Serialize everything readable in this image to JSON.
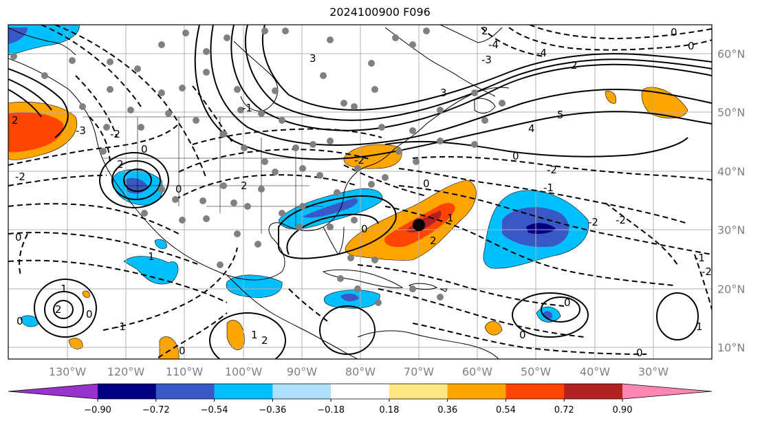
{
  "title": "2024100900 F096",
  "map": {
    "lon_labels": [
      "130°W",
      "120°W",
      "110°W",
      "100°W",
      "90°W",
      "80°W",
      "70°W",
      "60°W",
      "50°W",
      "40°W",
      "30°W"
    ],
    "lat_labels": [
      "60°N",
      "50°N",
      "40°N",
      "30°N",
      "20°N",
      "10°N"
    ],
    "grid_lines": true,
    "contour_labels": [
      "5",
      "4",
      "3",
      "2",
      "-1",
      "-2",
      "-3",
      "-4",
      "-5",
      "1",
      "2",
      "0"
    ],
    "center_marker": {
      "lon": -70,
      "lat": 31
    }
  },
  "colorbar": {
    "tick_labels": [
      "−0.90",
      "−0.72",
      "−0.54",
      "−0.36",
      "−0.18",
      "0.18",
      "0.36",
      "0.54",
      "0.72",
      "0.90"
    ],
    "colors": [
      "#9a32cd",
      "#000080",
      "#3a57c6",
      "#00bfff",
      "#aee0fb",
      "#ffffff",
      "#ffe680",
      "#ffa500",
      "#ff4500",
      "#b22222",
      "#ff85b3"
    ],
    "extend": "both"
  },
  "colors": {
    "grid": "#b0b0b0",
    "coast": "#000000",
    "contour": "#000000",
    "station_dot": "#808080"
  }
}
